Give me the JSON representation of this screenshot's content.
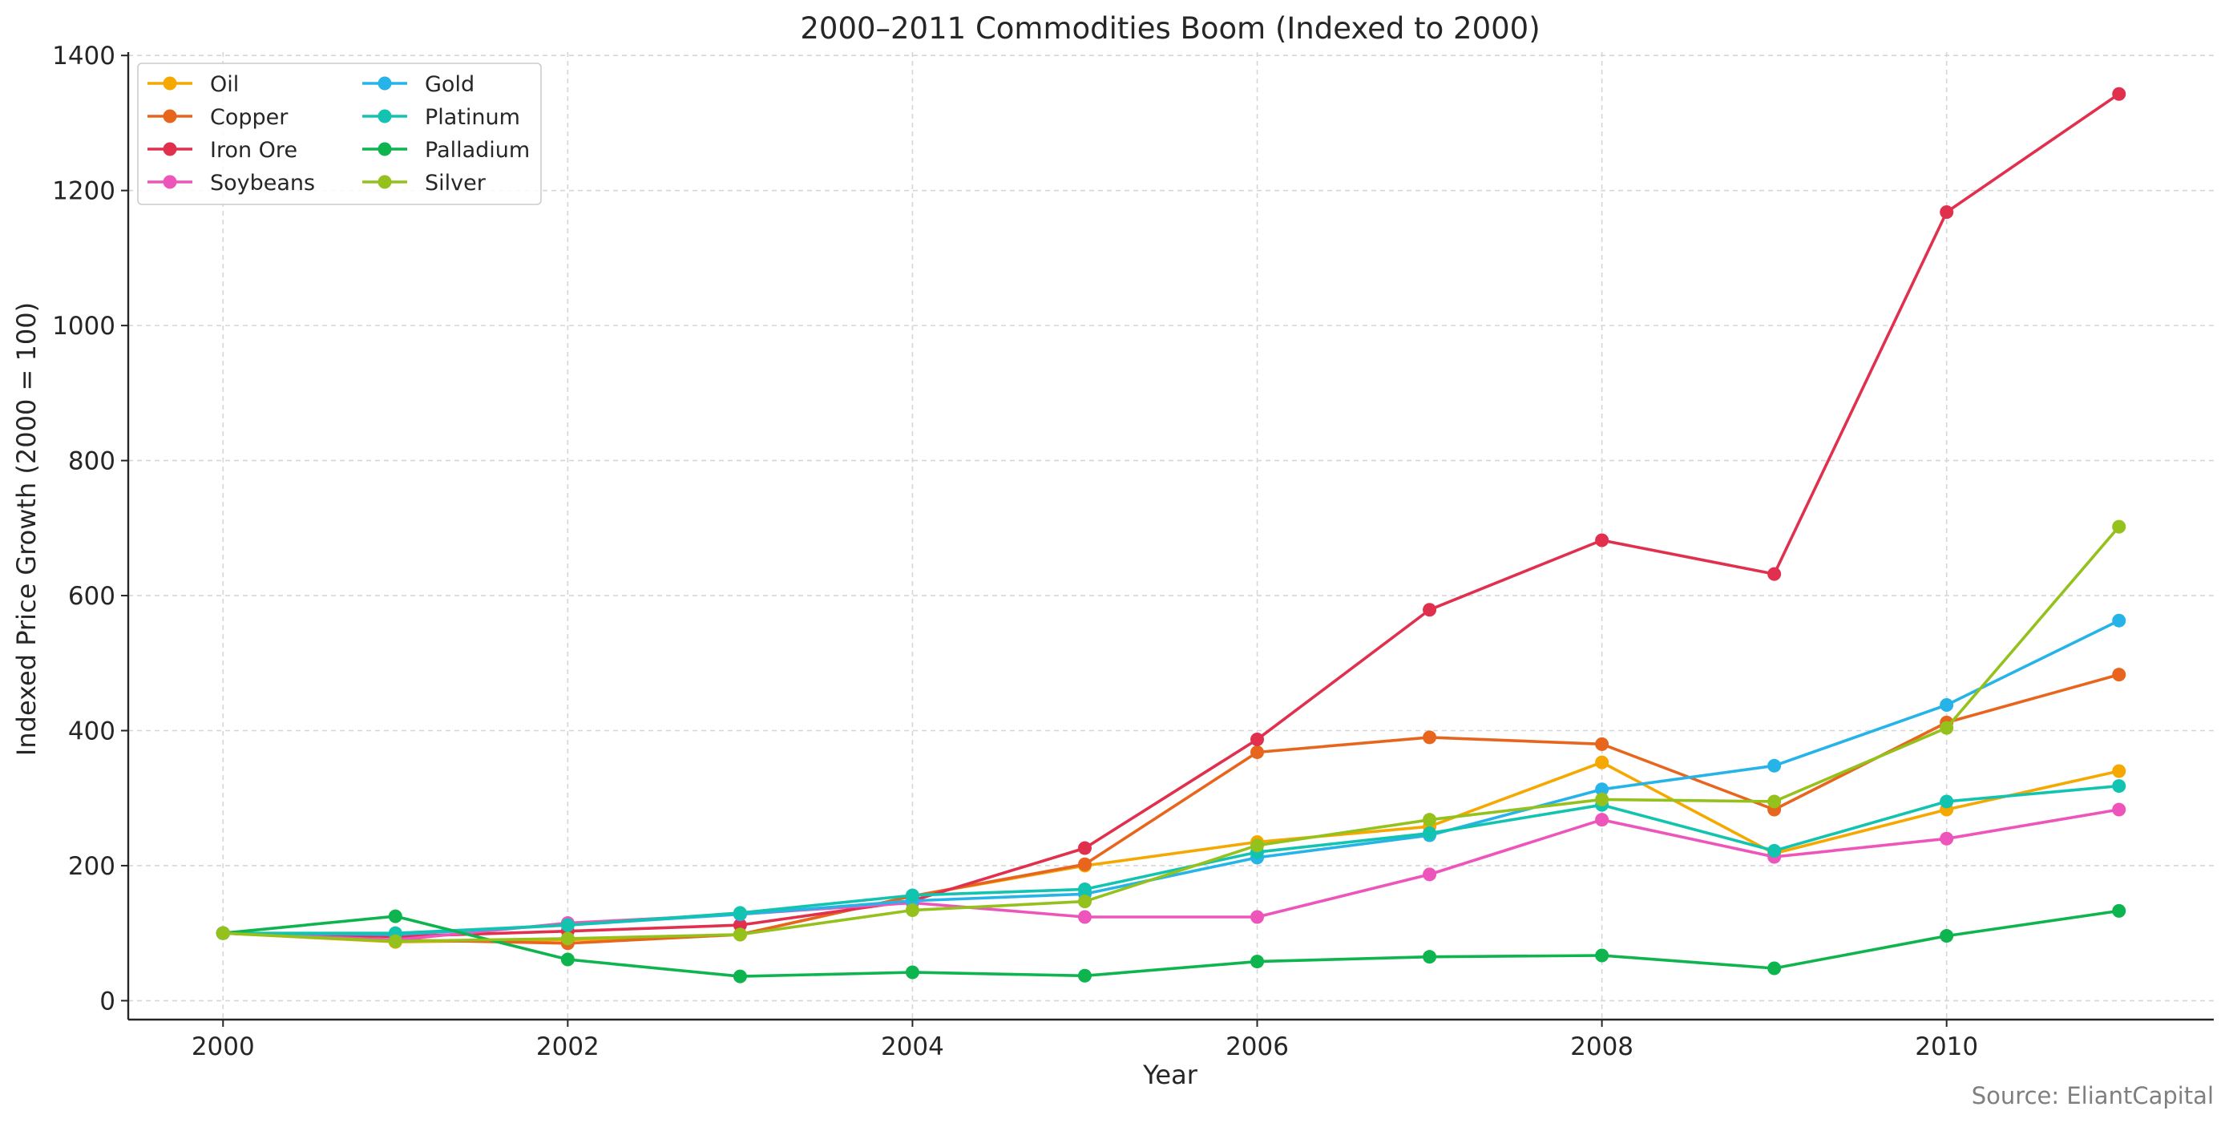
{
  "source_note": "Source: EliantCapital",
  "chart_data": {
    "type": "line",
    "title": "2000–2011 Commodities Boom (Indexed to 2000)",
    "xlabel": "Year",
    "ylabel": "Indexed Price Growth (2000 = 100)",
    "xlim": [
      1999.45,
      2011.55
    ],
    "ylim": [
      -28,
      1405
    ],
    "x_ticks": [
      2000,
      2002,
      2004,
      2006,
      2008,
      2010
    ],
    "y_ticks": [
      0,
      200,
      400,
      600,
      800,
      1000,
      1200,
      1400
    ],
    "grid": true,
    "legend_position": "top-left",
    "legend_columns": 2,
    "x": [
      2000,
      2001,
      2002,
      2003,
      2004,
      2005,
      2006,
      2007,
      2008,
      2009,
      2010,
      2011
    ],
    "series": [
      {
        "name": "Oil",
        "color": "#F5A800",
        "values": [
          100,
          87,
          90,
          98,
          155,
          200,
          235,
          258,
          353,
          218,
          283,
          340
        ]
      },
      {
        "name": "Copper",
        "color": "#E8651E",
        "values": [
          100,
          90,
          85,
          98,
          155,
          202,
          368,
          390,
          380,
          283,
          412,
          483
        ]
      },
      {
        "name": "Iron Ore",
        "color": "#E0304E",
        "values": [
          100,
          95,
          103,
          112,
          148,
          226,
          387,
          579,
          682,
          632,
          1168,
          1343
        ]
      },
      {
        "name": "Soybeans",
        "color": "#EE55BB",
        "values": [
          100,
          90,
          115,
          128,
          145,
          124,
          124,
          187,
          268,
          213,
          240,
          283
        ]
      },
      {
        "name": "Gold",
        "color": "#26B4E8",
        "values": [
          100,
          98,
          112,
          128,
          148,
          158,
          212,
          245,
          313,
          348,
          438,
          563
        ]
      },
      {
        "name": "Platinum",
        "color": "#12C4B0",
        "values": [
          100,
          100,
          112,
          130,
          156,
          165,
          220,
          248,
          290,
          222,
          295,
          318
        ]
      },
      {
        "name": "Palladium",
        "color": "#0EB44E",
        "values": [
          100,
          125,
          61,
          36,
          42,
          37,
          58,
          65,
          67,
          48,
          96,
          133
        ]
      },
      {
        "name": "Silver",
        "color": "#94C11C",
        "values": [
          100,
          88,
          92,
          98,
          134,
          147,
          230,
          268,
          298,
          295,
          404,
          702
        ]
      }
    ]
  }
}
